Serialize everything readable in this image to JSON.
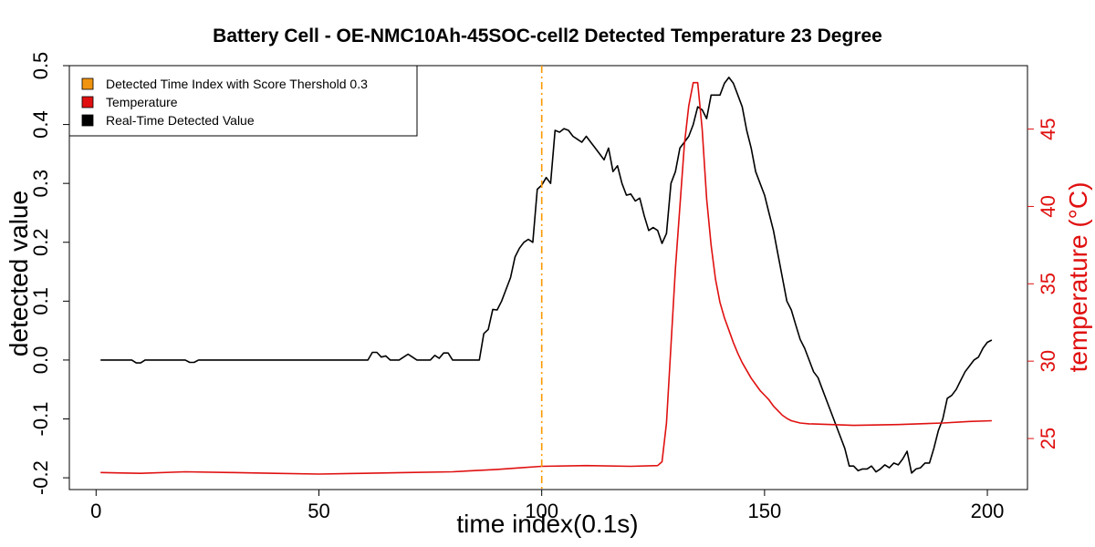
{
  "chart_data": {
    "type": "line",
    "title": "Battery Cell - OE-NMC10Ah-45SOC-cell2 Detected Temperature 23 Degree",
    "xlabel": "time index(0.1s)",
    "ylabel": "detected value",
    "y2label": "temperature (°C)",
    "xlim": [
      -6,
      209
    ],
    "ylim": [
      -0.22,
      0.5
    ],
    "y2lim": [
      21.7,
      49.1
    ],
    "xticks": [
      "0",
      "50",
      "100",
      "150",
      "200"
    ],
    "yticks": [
      "-0.2",
      "-0.1",
      "0.0",
      "0.1",
      "0.2",
      "0.3",
      "0.4",
      "0.5"
    ],
    "y2ticks": [
      "25",
      "30",
      "35",
      "40",
      "45"
    ],
    "threshold_line": {
      "x": 100,
      "color": "#ff9900",
      "style": "dashdot"
    },
    "legend_position": "top-left",
    "legend": [
      {
        "label": "Detected Time Index with Score Thershold 0.3",
        "color": "#f0930f"
      },
      {
        "label": "Temperature",
        "color": "#e01010"
      },
      {
        "label": "Real-Time Detected Value",
        "color": "#000000"
      }
    ],
    "series": [
      {
        "name": "Real-Time Detected Value",
        "axis": "left",
        "color": "#000000",
        "points": [
          [
            1,
            0.0
          ],
          [
            8,
            0.0
          ],
          [
            9,
            -0.005
          ],
          [
            10,
            -0.005
          ],
          [
            11,
            0.0
          ],
          [
            20,
            0.0
          ],
          [
            21,
            -0.004
          ],
          [
            22,
            -0.004
          ],
          [
            23,
            0.0
          ],
          [
            60,
            0.0
          ],
          [
            61,
            0.0
          ],
          [
            62,
            0.013
          ],
          [
            63,
            0.013
          ],
          [
            64,
            0.005
          ],
          [
            65,
            0.007
          ],
          [
            66,
            0.0
          ],
          [
            68,
            0.0
          ],
          [
            69,
            0.005
          ],
          [
            70,
            0.01
          ],
          [
            71,
            0.005
          ],
          [
            72,
            0.0
          ],
          [
            75,
            0.0
          ],
          [
            76,
            0.008
          ],
          [
            77,
            0.003
          ],
          [
            78,
            0.012
          ],
          [
            79,
            0.012
          ],
          [
            80,
            0.0
          ],
          [
            86,
            0.0
          ],
          [
            87,
            0.045
          ],
          [
            88,
            0.052
          ],
          [
            89,
            0.086
          ],
          [
            90,
            0.085
          ],
          [
            91,
            0.1
          ],
          [
            92,
            0.12
          ],
          [
            93,
            0.14
          ],
          [
            94,
            0.175
          ],
          [
            95,
            0.19
          ],
          [
            96,
            0.2
          ],
          [
            97,
            0.205
          ],
          [
            98,
            0.2
          ],
          [
            99,
            0.29
          ],
          [
            100,
            0.297
          ],
          [
            101,
            0.31
          ],
          [
            102,
            0.3
          ],
          [
            103,
            0.39
          ],
          [
            104,
            0.387
          ],
          [
            105,
            0.393
          ],
          [
            106,
            0.39
          ],
          [
            107,
            0.38
          ],
          [
            108,
            0.375
          ],
          [
            109,
            0.37
          ],
          [
            110,
            0.38
          ],
          [
            111,
            0.37
          ],
          [
            112,
            0.36
          ],
          [
            113,
            0.35
          ],
          [
            114,
            0.34
          ],
          [
            115,
            0.36
          ],
          [
            116,
            0.32
          ],
          [
            117,
            0.33
          ],
          [
            118,
            0.3
          ],
          [
            119,
            0.28
          ],
          [
            120,
            0.282
          ],
          [
            121,
            0.27
          ],
          [
            122,
            0.275
          ],
          [
            123,
            0.245
          ],
          [
            124,
            0.22
          ],
          [
            125,
            0.225
          ],
          [
            126,
            0.22
          ],
          [
            127,
            0.198
          ],
          [
            128,
            0.215
          ],
          [
            129,
            0.3
          ],
          [
            130,
            0.32
          ],
          [
            131,
            0.36
          ],
          [
            132,
            0.37
          ],
          [
            133,
            0.38
          ],
          [
            134,
            0.4
          ],
          [
            135,
            0.43
          ],
          [
            136,
            0.425
          ],
          [
            137,
            0.41
          ],
          [
            138,
            0.45
          ],
          [
            139,
            0.45
          ],
          [
            140,
            0.45
          ],
          [
            141,
            0.47
          ],
          [
            142,
            0.48
          ],
          [
            143,
            0.47
          ],
          [
            144,
            0.45
          ],
          [
            145,
            0.43
          ],
          [
            146,
            0.39
          ],
          [
            147,
            0.36
          ],
          [
            148,
            0.32
          ],
          [
            149,
            0.3
          ],
          [
            150,
            0.28
          ],
          [
            151,
            0.25
          ],
          [
            152,
            0.22
          ],
          [
            153,
            0.18
          ],
          [
            154,
            0.14
          ],
          [
            155,
            0.1
          ],
          [
            156,
            0.085
          ],
          [
            157,
            0.06
          ],
          [
            158,
            0.035
          ],
          [
            159,
            0.02
          ],
          [
            160,
            0.0
          ],
          [
            161,
            -0.02
          ],
          [
            162,
            -0.03
          ],
          [
            163,
            -0.05
          ],
          [
            164,
            -0.07
          ],
          [
            165,
            -0.09
          ],
          [
            166,
            -0.11
          ],
          [
            167,
            -0.13
          ],
          [
            168,
            -0.15
          ],
          [
            169,
            -0.18
          ],
          [
            170,
            -0.18
          ],
          [
            171,
            -0.188
          ],
          [
            172,
            -0.185
          ],
          [
            173,
            -0.185
          ],
          [
            174,
            -0.18
          ],
          [
            175,
            -0.19
          ],
          [
            176,
            -0.185
          ],
          [
            177,
            -0.178
          ],
          [
            178,
            -0.183
          ],
          [
            179,
            -0.175
          ],
          [
            180,
            -0.178
          ],
          [
            181,
            -0.168
          ],
          [
            182,
            -0.155
          ],
          [
            183,
            -0.192
          ],
          [
            184,
            -0.185
          ],
          [
            185,
            -0.183
          ],
          [
            186,
            -0.175
          ],
          [
            187,
            -0.175
          ],
          [
            188,
            -0.15
          ],
          [
            189,
            -0.12
          ],
          [
            190,
            -0.1
          ],
          [
            191,
            -0.065
          ],
          [
            192,
            -0.06
          ],
          [
            193,
            -0.05
          ],
          [
            194,
            -0.035
          ],
          [
            195,
            -0.02
          ],
          [
            196,
            -0.01
          ],
          [
            197,
            0.0
          ],
          [
            198,
            0.005
          ],
          [
            199,
            0.02
          ],
          [
            200,
            0.03
          ],
          [
            201,
            0.034
          ]
        ]
      },
      {
        "name": "Temperature",
        "axis": "right",
        "color": "#e01010",
        "points": [
          [
            1,
            22.8
          ],
          [
            10,
            22.75
          ],
          [
            20,
            22.85
          ],
          [
            30,
            22.8
          ],
          [
            40,
            22.75
          ],
          [
            50,
            22.7
          ],
          [
            60,
            22.75
          ],
          [
            70,
            22.8
          ],
          [
            80,
            22.85
          ],
          [
            90,
            23.0
          ],
          [
            95,
            23.1
          ],
          [
            100,
            23.2
          ],
          [
            110,
            23.25
          ],
          [
            120,
            23.2
          ],
          [
            126,
            23.25
          ],
          [
            127,
            23.5
          ],
          [
            128,
            26.0
          ],
          [
            129,
            31.0
          ],
          [
            130,
            36.0
          ],
          [
            131,
            40.0
          ],
          [
            132,
            44.0
          ],
          [
            133,
            46.5
          ],
          [
            134,
            48.0
          ],
          [
            135,
            48.0
          ],
          [
            136,
            45.0
          ],
          [
            137,
            40.5
          ],
          [
            138,
            37.5
          ],
          [
            139,
            35.3
          ],
          [
            140,
            33.8
          ],
          [
            141,
            32.8
          ],
          [
            142,
            32.0
          ],
          [
            143,
            31.2
          ],
          [
            144,
            30.5
          ],
          [
            145,
            29.9
          ],
          [
            146,
            29.4
          ],
          [
            147,
            28.9
          ],
          [
            148,
            28.5
          ],
          [
            149,
            28.1
          ],
          [
            150,
            27.8
          ],
          [
            151,
            27.5
          ],
          [
            152,
            27.1
          ],
          [
            153,
            26.8
          ],
          [
            154,
            26.5
          ],
          [
            155,
            26.3
          ],
          [
            156,
            26.15
          ],
          [
            158,
            26.0
          ],
          [
            160,
            25.95
          ],
          [
            165,
            25.9
          ],
          [
            170,
            25.85
          ],
          [
            180,
            25.9
          ],
          [
            190,
            26.0
          ],
          [
            196,
            26.1
          ],
          [
            201,
            26.15
          ]
        ]
      }
    ]
  }
}
